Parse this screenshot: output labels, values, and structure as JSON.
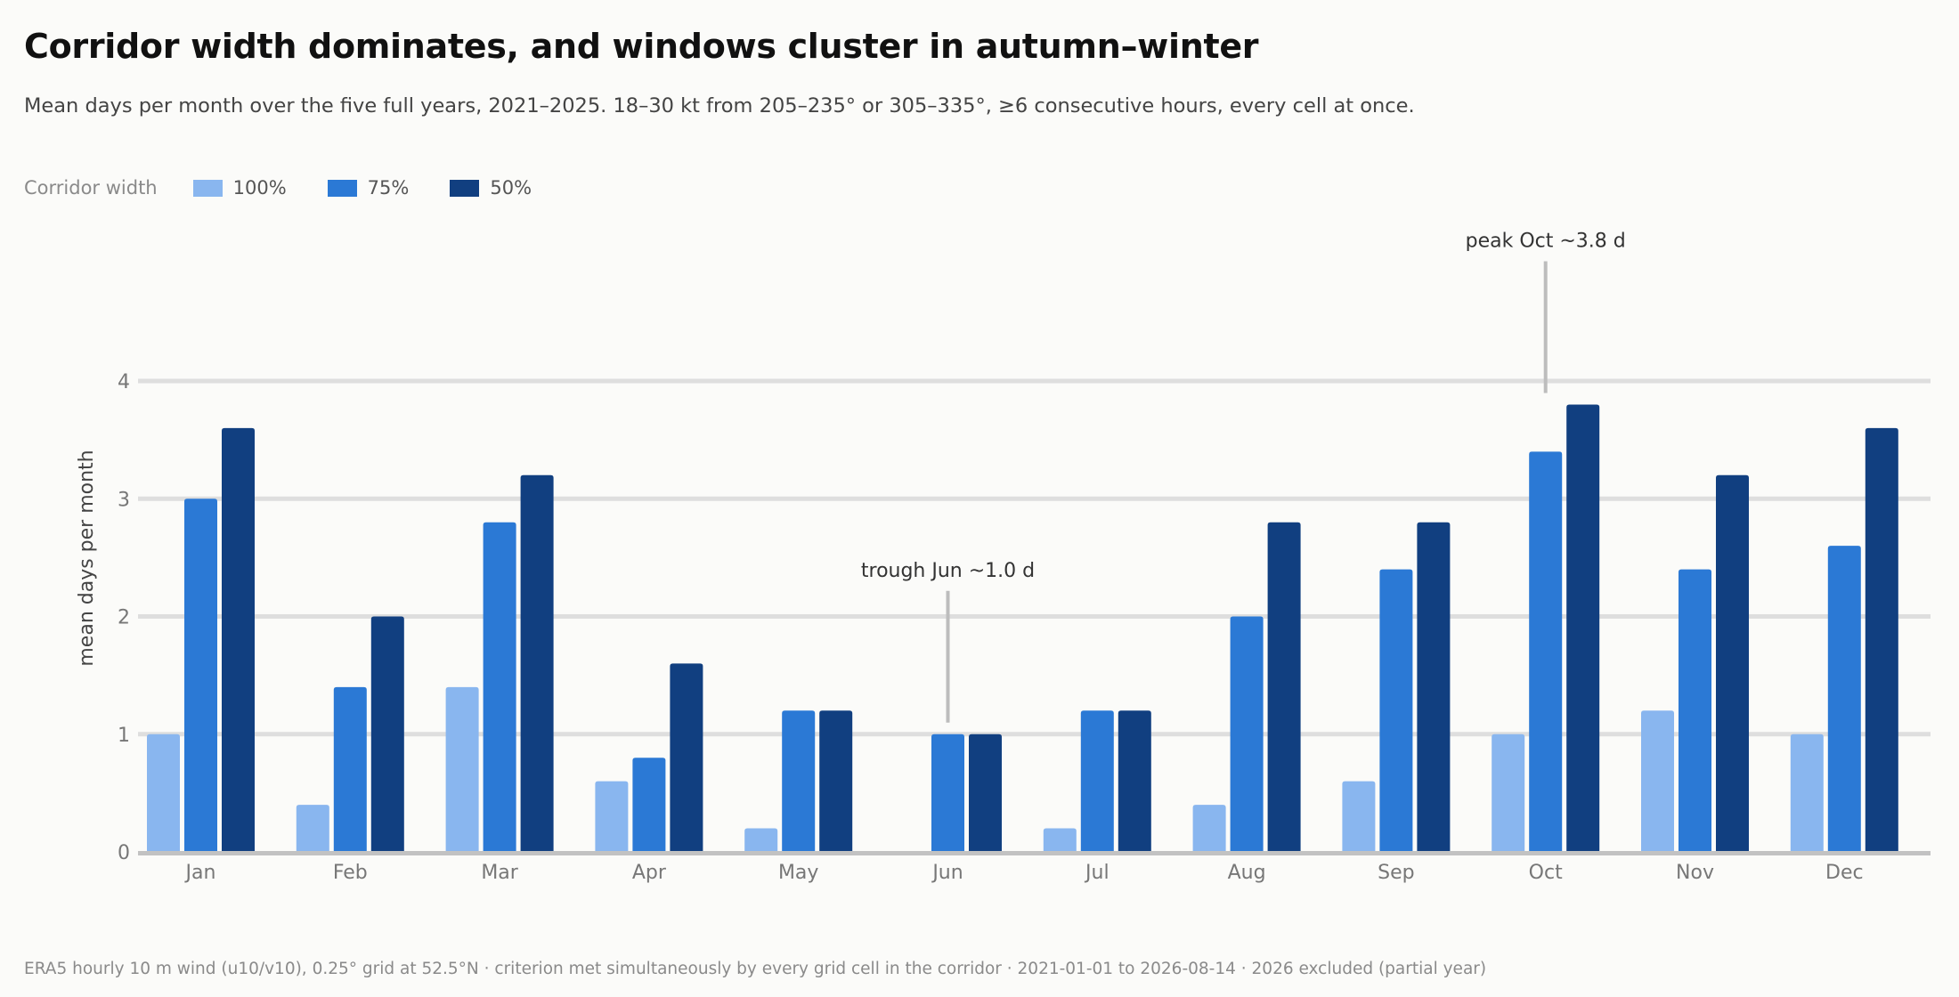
{
  "chart_data": {
    "type": "bar",
    "title": "Corridor width dominates, and windows cluster in autumn–winter",
    "subtitle": "Mean days per month over the five full years, 2021–2025. 18–30 kt from 205–235° or 305–335°, ≥6 consecutive hours, every cell at once.",
    "legend_title": "Corridor width",
    "legend_placement": "top-left",
    "categories": [
      "Jan",
      "Feb",
      "Mar",
      "Apr",
      "May",
      "Jun",
      "Jul",
      "Aug",
      "Sep",
      "Oct",
      "Nov",
      "Dec"
    ],
    "series": [
      {
        "name": "100%",
        "color": "#89b6ef",
        "values": [
          1.0,
          0.4,
          1.4,
          0.6,
          0.2,
          0.0,
          0.2,
          0.4,
          0.6,
          1.0,
          1.2,
          1.0
        ]
      },
      {
        "name": "75%",
        "color": "#2b79d5",
        "values": [
          3.0,
          1.4,
          2.8,
          0.8,
          1.2,
          1.0,
          1.2,
          2.0,
          2.4,
          3.4,
          2.4,
          2.6
        ]
      },
      {
        "name": "50%",
        "color": "#113f80",
        "values": [
          3.6,
          2.0,
          3.2,
          1.6,
          1.2,
          1.0,
          1.2,
          2.8,
          2.8,
          3.8,
          3.2,
          3.6
        ]
      }
    ],
    "xlabel": "",
    "ylabel": "mean days per month",
    "ylim": [
      0,
      4.2
    ],
    "yticks": [
      "0",
      "1",
      "2",
      "3",
      "4"
    ],
    "grid": true,
    "annotations": [
      {
        "text": "trough Jun  ~1.0 d",
        "category": "Jun",
        "value": 1.0
      },
      {
        "text": "peak Oct  ~3.8 d",
        "category": "Oct",
        "value": 3.8
      }
    ],
    "footnote": "ERA5 hourly 10 m wind (u10/v10), 0.25° grid at 52.5°N · criterion met simultaneously by every grid cell in the corridor · 2021-01-01 to 2026-08-14 · 2026 excluded (partial year)"
  }
}
